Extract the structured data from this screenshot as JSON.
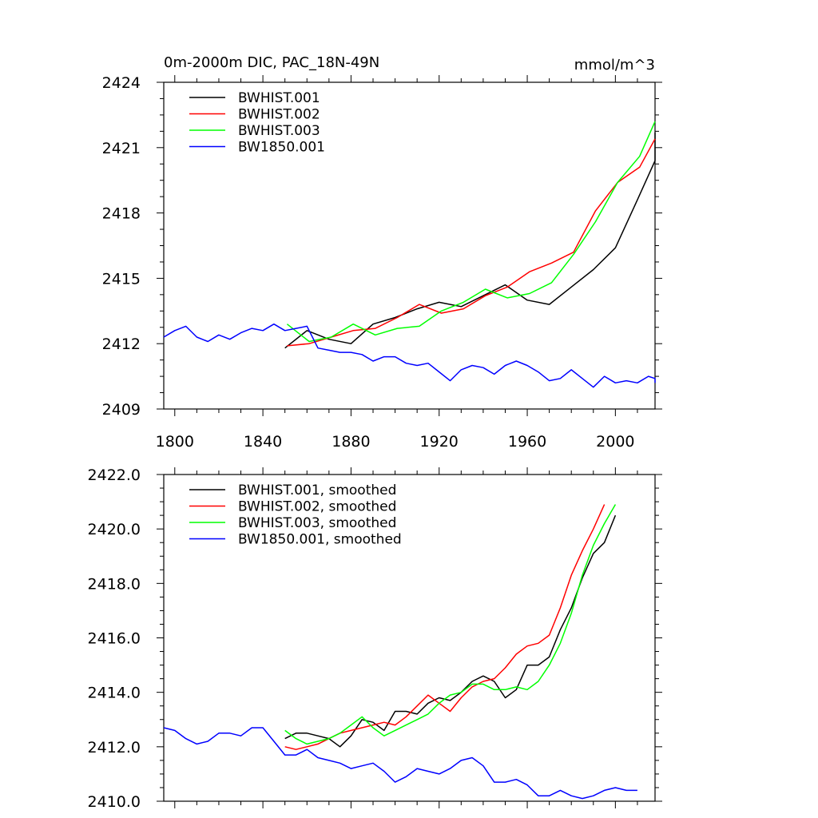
{
  "chart_data": [
    {
      "type": "line",
      "title_left": "0m-2000m DIC, PAC_18N-49N",
      "title_right": "mmol/m^3",
      "xlabel": "",
      "ylabel": "",
      "xlim": [
        1795,
        2018
      ],
      "ylim": [
        2409,
        2424
      ],
      "xticks": [
        1800,
        1840,
        1880,
        1920,
        1960,
        2000
      ],
      "xtick_labels": [
        "1800",
        "1840",
        "1880",
        "1920",
        "1960",
        "2000"
      ],
      "yticks": [
        2409,
        2412,
        2415,
        2418,
        2421,
        2424
      ],
      "ytick_labels": [
        "2409",
        "2412",
        "2415",
        "2418",
        "2421",
        "2424"
      ],
      "legend_position": "top-left",
      "series": [
        {
          "name": "BWHIST.001",
          "color": "#000000",
          "x_start": 1850,
          "x_step": 10,
          "values": [
            2411.8,
            2412.6,
            2412.2,
            2412.0,
            2412.9,
            2413.2,
            2413.6,
            2413.9,
            2413.7,
            2414.2,
            2414.7,
            2414.0,
            2413.8,
            2414.6,
            2415.4,
            2416.4,
            2418.6,
            2420.4,
            2421.7
          ]
        },
        {
          "name": "BWHIST.002",
          "color": "#ff0000",
          "x_start": 1851,
          "x_step": 10,
          "values": [
            2411.9,
            2412.0,
            2412.3,
            2412.6,
            2412.7,
            2413.2,
            2413.8,
            2413.4,
            2413.6,
            2414.2,
            2414.6,
            2415.3,
            2415.7,
            2416.2,
            2418.1,
            2419.4,
            2420.1,
            2421.4
          ]
        },
        {
          "name": "BWHIST.003",
          "color": "#00ff00",
          "x_start": 1851,
          "x_step": 10,
          "values": [
            2412.9,
            2412.1,
            2412.3,
            2412.9,
            2412.4,
            2412.7,
            2412.8,
            2413.5,
            2413.9,
            2414.5,
            2414.1,
            2414.3,
            2414.8,
            2416.1,
            2417.6,
            2419.4,
            2420.6,
            2422.2
          ]
        },
        {
          "name": "BW1850.001",
          "color": "#0000ff",
          "x_start": 1795,
          "x_step": 5,
          "values": [
            2412.3,
            2412.6,
            2412.8,
            2412.3,
            2412.1,
            2412.4,
            2412.2,
            2412.5,
            2412.7,
            2412.6,
            2412.9,
            2412.6,
            2412.7,
            2412.8,
            2411.8,
            2411.7,
            2411.6,
            2411.6,
            2411.5,
            2411.2,
            2411.4,
            2411.4,
            2411.1,
            2411.0,
            2411.1,
            2410.7,
            2410.3,
            2410.8,
            2411.0,
            2410.9,
            2410.6,
            2411.0,
            2411.2,
            2411.0,
            2410.7,
            2410.3,
            2410.4,
            2410.8,
            2410.4,
            2410.0,
            2410.5,
            2410.2,
            2410.3,
            2410.2,
            2410.5,
            2410.4,
            2410.2
          ]
        }
      ]
    },
    {
      "type": "line",
      "title_left": "",
      "title_right": "",
      "xlabel": "",
      "ylabel": "",
      "xlim": [
        1795,
        2018
      ],
      "ylim": [
        2410.0,
        2422.0
      ],
      "xticks": [
        1800,
        1840,
        1880,
        1920,
        1960,
        2000
      ],
      "xtick_labels": [],
      "yticks": [
        2410,
        2412,
        2414,
        2416,
        2418,
        2420,
        2422
      ],
      "ytick_labels": [
        "2410.0",
        "2412.0",
        "2414.0",
        "2416.0",
        "2418.0",
        "2420.0",
        "2422.0"
      ],
      "legend_position": "top-left",
      "series": [
        {
          "name": "BWHIST.001, smoothed",
          "color": "#000000",
          "x_start": 1850,
          "x_step": 5,
          "values": [
            2412.3,
            2412.5,
            2412.5,
            2412.4,
            2412.3,
            2412.0,
            2412.4,
            2413.0,
            2412.9,
            2412.6,
            2413.3,
            2413.3,
            2413.2,
            2413.6,
            2413.8,
            2413.7,
            2414.0,
            2414.4,
            2414.6,
            2414.4,
            2413.8,
            2414.1,
            2415.0,
            2415.0,
            2415.3,
            2416.3,
            2417.1,
            2418.2,
            2419.1,
            2419.5,
            2420.5
          ]
        },
        {
          "name": "BWHIST.002, smoothed",
          "color": "#ff0000",
          "x_start": 1850,
          "x_step": 5,
          "values": [
            2412.0,
            2411.9,
            2412.0,
            2412.1,
            2412.3,
            2412.5,
            2412.6,
            2412.7,
            2412.8,
            2412.9,
            2412.8,
            2413.1,
            2413.5,
            2413.9,
            2413.6,
            2413.3,
            2413.8,
            2414.2,
            2414.4,
            2414.5,
            2414.9,
            2415.4,
            2415.7,
            2415.8,
            2416.1,
            2417.1,
            2418.3,
            2419.2,
            2420.0,
            2420.9
          ]
        },
        {
          "name": "BWHIST.003, smoothed",
          "color": "#00ff00",
          "x_start": 1850,
          "x_step": 5,
          "values": [
            2412.6,
            2412.3,
            2412.1,
            2412.2,
            2412.3,
            2412.5,
            2412.8,
            2413.1,
            2412.7,
            2412.4,
            2412.6,
            2412.8,
            2413.0,
            2413.2,
            2413.6,
            2413.9,
            2414.0,
            2414.3,
            2414.3,
            2414.1,
            2414.1,
            2414.2,
            2414.1,
            2414.4,
            2415.0,
            2415.8,
            2416.9,
            2418.3,
            2419.4,
            2420.2,
            2420.9
          ]
        },
        {
          "name": "BW1850.001, smoothed",
          "color": "#0000ff",
          "x_start": 1795,
          "x_step": 5,
          "values": [
            2412.7,
            2412.6,
            2412.3,
            2412.1,
            2412.2,
            2412.5,
            2412.5,
            2412.4,
            2412.7,
            2412.7,
            2412.2,
            2411.7,
            2411.7,
            2411.9,
            2411.6,
            2411.5,
            2411.4,
            2411.2,
            2411.3,
            2411.4,
            2411.1,
            2410.7,
            2410.9,
            2411.2,
            2411.1,
            2411.0,
            2411.2,
            2411.5,
            2411.6,
            2411.3,
            2410.7,
            2410.7,
            2410.8,
            2410.6,
            2410.2,
            2410.2,
            2410.4,
            2410.2,
            2410.1,
            2410.2,
            2410.4,
            2410.5,
            2410.4,
            2410.4
          ]
        }
      ]
    }
  ]
}
